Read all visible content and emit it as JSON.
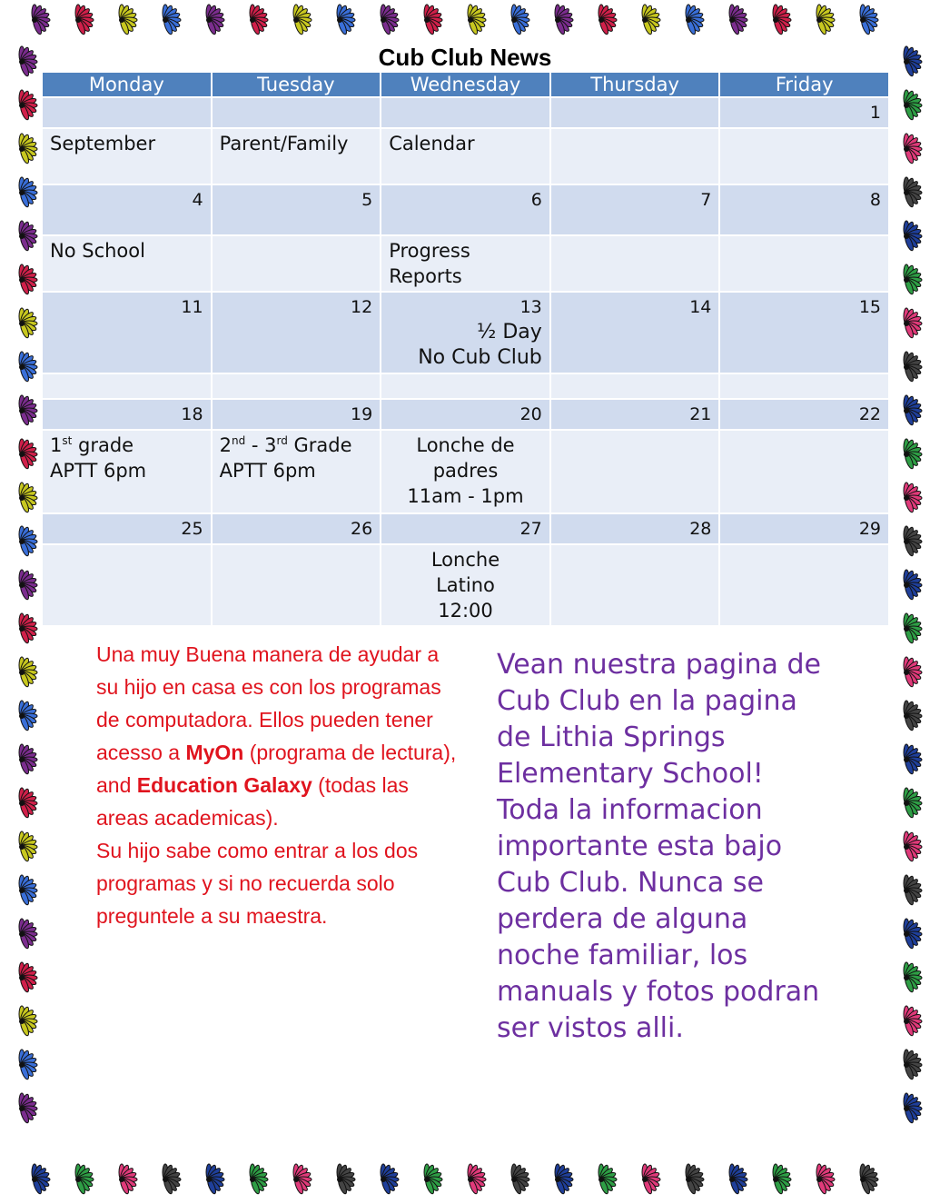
{
  "header": {
    "title": "Cub Club News"
  },
  "table": {
    "columns": [
      "Monday",
      "Tuesday",
      "Wednesday",
      "Thursday",
      "Friday"
    ],
    "rows": [
      [
        [],
        [],
        [],
        [],
        [
          "1"
        ]
      ],
      [
        [
          "September"
        ],
        [
          "Parent/Family"
        ],
        [
          "Calendar"
        ],
        [],
        []
      ],
      [
        [
          "4"
        ],
        [
          "5"
        ],
        [
          "6"
        ],
        [
          "7"
        ],
        [
          "8"
        ]
      ],
      [
        [
          "No School"
        ],
        [],
        [
          "Progress",
          "Reports"
        ],
        [],
        []
      ],
      [
        [
          "11"
        ],
        [
          "12"
        ],
        [
          "13",
          "½ Day",
          "No Cub Club"
        ],
        [
          "14"
        ],
        [
          "15"
        ]
      ],
      [
        [],
        [],
        [],
        [],
        []
      ],
      [
        [
          "18"
        ],
        [
          "19"
        ],
        [
          "20"
        ],
        [
          "21"
        ],
        [
          "22"
        ]
      ],
      [
        [
          [
            "1",
            {
              "sup": "st"
            },
            " grade"
          ],
          "APTT 6pm"
        ],
        [
          [
            "2",
            {
              "sup": "nd"
            },
            " - 3",
            {
              "sup": "rd"
            },
            "  Grade"
          ],
          "APTT 6pm"
        ],
        [
          "Lonche de",
          "padres",
          "11am - 1pm"
        ],
        [],
        []
      ],
      [
        [
          "25"
        ],
        [
          "26"
        ],
        [
          "27"
        ],
        [
          "28"
        ],
        [
          "29"
        ]
      ],
      [
        [],
        [],
        [
          "Lonche",
          "Latino",
          "12:00"
        ],
        [],
        []
      ]
    ]
  },
  "left_note": {
    "paragraphs": [
      [
        {
          "text": "Una muy Buena manera de ayudar a su hijo en casa es con los programas de computadora. Ellos pueden tener acesso a "
        },
        {
          "text": "MyOn",
          "bold": true
        },
        {
          "text": " (programa de lectura), and "
        },
        {
          "text": "Education Galaxy",
          "bold": true
        },
        {
          "text": " (todas las areas academicas)."
        }
      ],
      [
        {
          "text": "Su hijo sabe como entrar a los dos programas y si no recuerda solo preguntele a su maestra."
        }
      ]
    ]
  },
  "right_note": {
    "text": "Vean nuestra pagina de Cub Club en la pagina de Lithia Springs Elementary School! Toda la informacion importante esta bajo Cub Club. Nunca se perdera de alguna noche familiar, los manuals y fotos podran ser vistos alli."
  }
}
